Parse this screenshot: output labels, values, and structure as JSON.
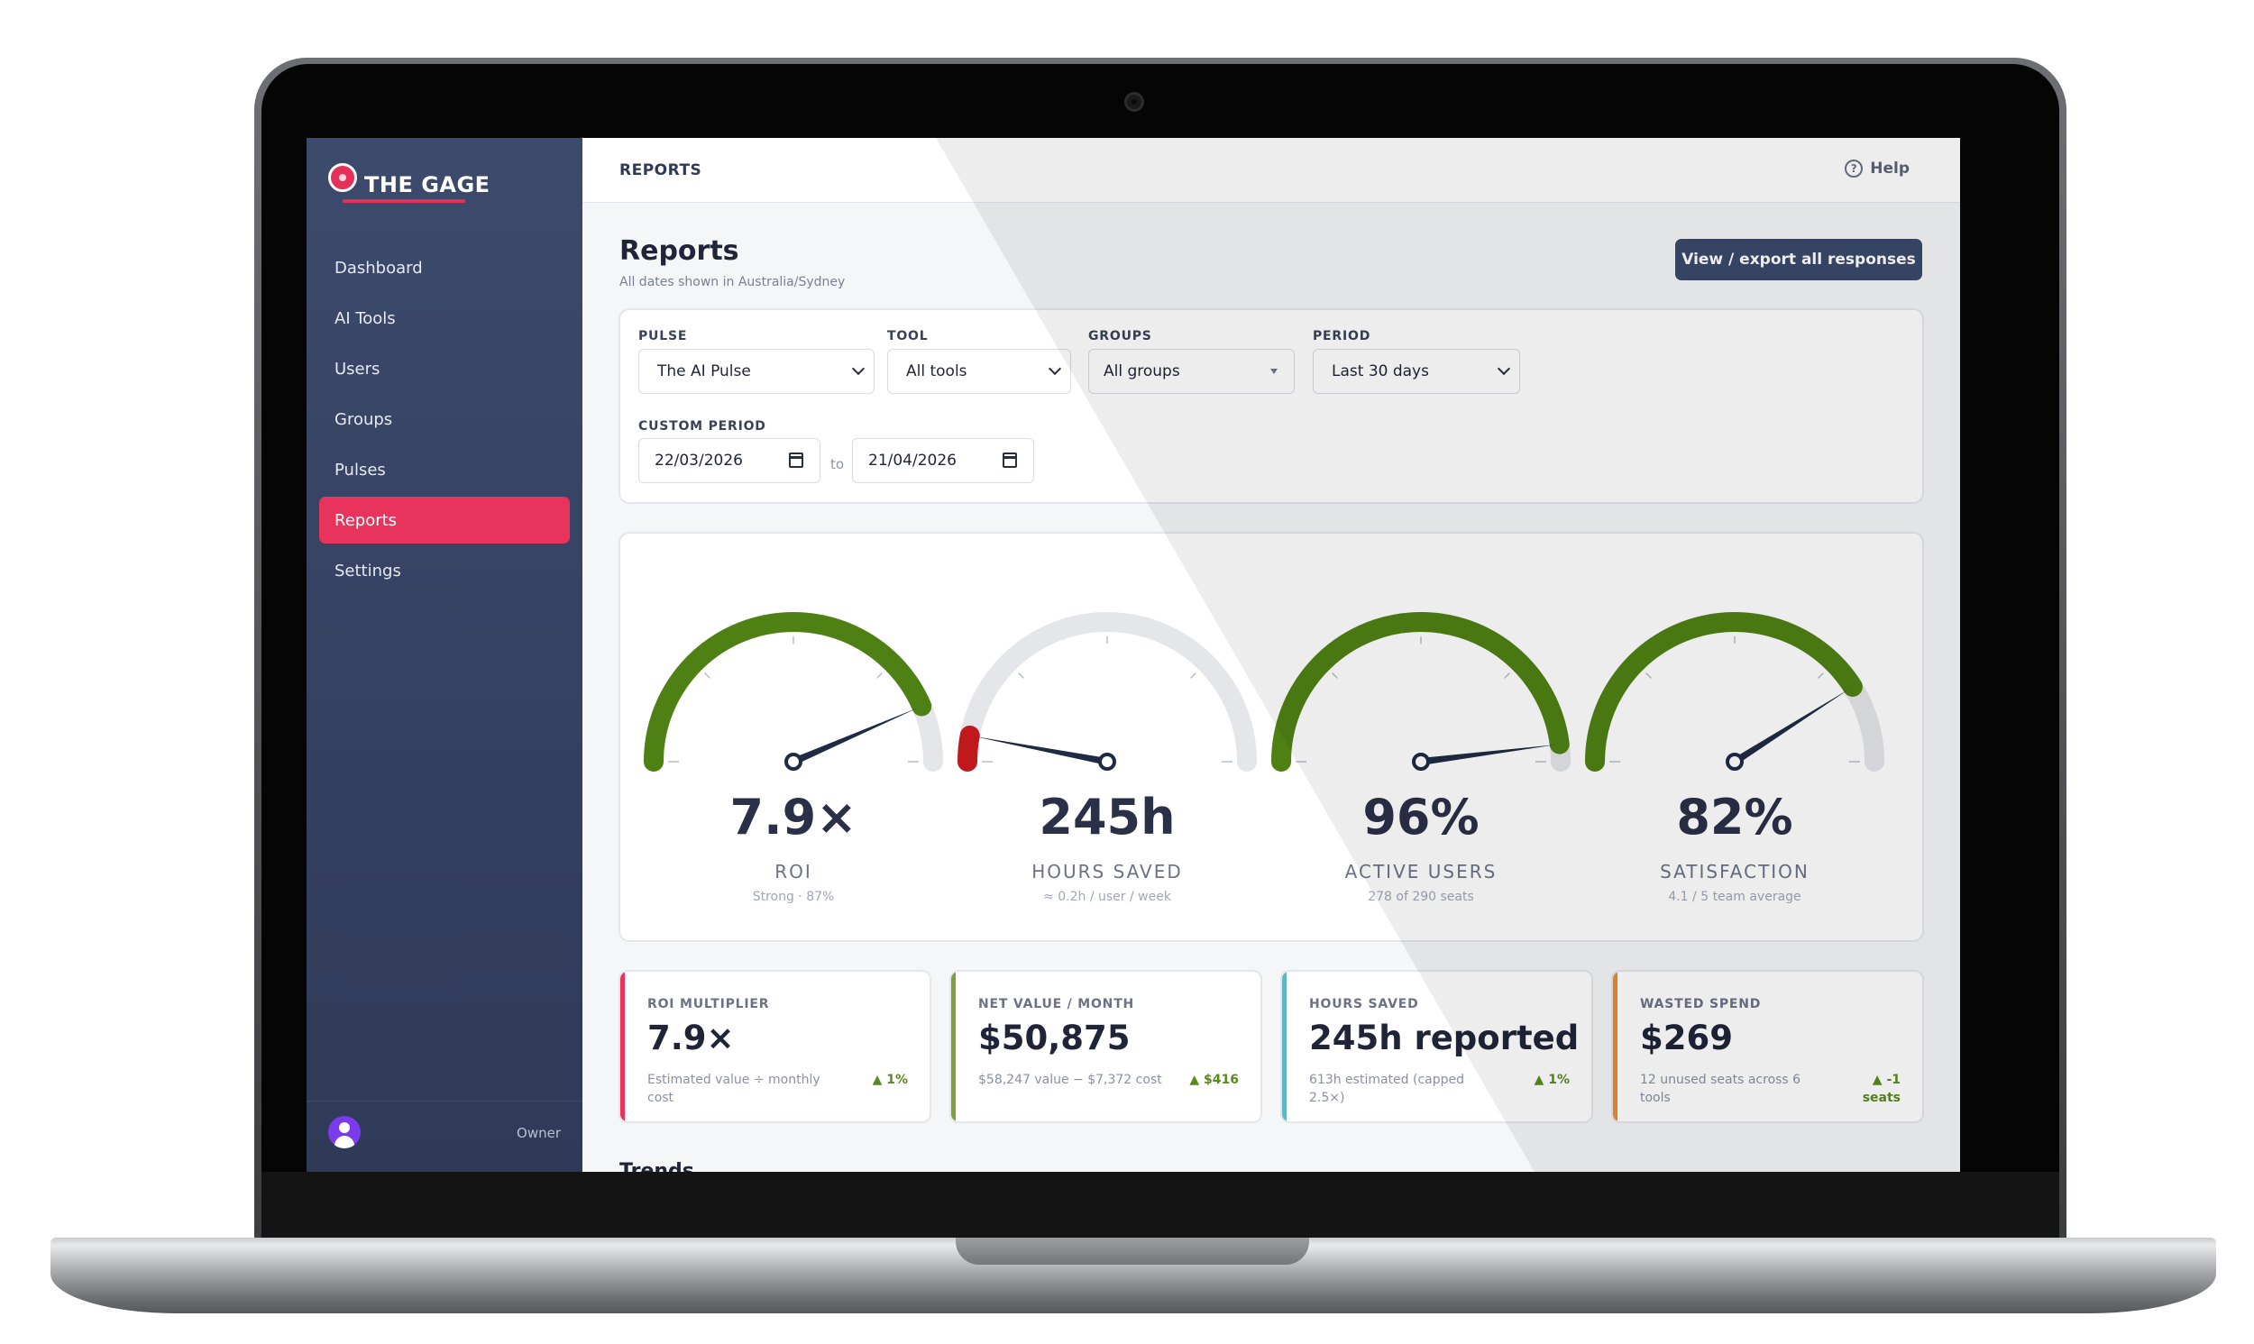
{
  "app": {
    "brand": "THE GAGE"
  },
  "sidebar": {
    "items": [
      {
        "label": "Dashboard",
        "active": false
      },
      {
        "label": "AI Tools",
        "active": false
      },
      {
        "label": "Users",
        "active": false
      },
      {
        "label": "Groups",
        "active": false
      },
      {
        "label": "Pulses",
        "active": false
      },
      {
        "label": "Reports",
        "active": true
      },
      {
        "label": "Settings",
        "active": false
      }
    ],
    "footer": {
      "role": "Owner"
    }
  },
  "topbar": {
    "title": "REPORTS",
    "help": "Help"
  },
  "page": {
    "title": "Reports",
    "subtitle": "All dates shown in Australia/Sydney",
    "export_button": "View / export all responses"
  },
  "filters": {
    "pulse": {
      "label": "PULSE",
      "value": "The AI Pulse"
    },
    "tool": {
      "label": "TOOL",
      "value": "All tools"
    },
    "groups": {
      "label": "GROUPS",
      "value": "All groups"
    },
    "period": {
      "label": "PERIOD",
      "value": "Last 30 days"
    },
    "custom_period": {
      "label": "CUSTOM PERIOD",
      "from": "22/03/2026",
      "to_label": "to",
      "to": "21/04/2026"
    }
  },
  "gauges": [
    {
      "value": "7.9×",
      "label": "ROI",
      "sub": "Strong · 87%",
      "level": 0.87,
      "color": "#4f8013"
    },
    {
      "value": "245h",
      "label": "HOURS SAVED",
      "sub": "≈ 0.2h / user / week",
      "level": 0.06,
      "color": "#c0191b"
    },
    {
      "value": "96%",
      "label": "ACTIVE USERS",
      "sub": "278 of 290 seats",
      "level": 0.96,
      "color": "#4f8013"
    },
    {
      "value": "82%",
      "label": "SATISFACTION",
      "sub": "4.1 / 5 team average",
      "level": 0.82,
      "color": "#4f8013"
    }
  ],
  "kpis": [
    {
      "label": "ROI MULTIPLIER",
      "value": "7.9×",
      "desc": "Estimated value ÷ monthly cost",
      "trend": "▲ 1%",
      "accent": "#e8345c"
    },
    {
      "label": "NET VALUE / MONTH",
      "value": "$50,875",
      "desc": "$58,247 value − $7,372 cost",
      "trend": "▲ $416",
      "accent": "#7da23a"
    },
    {
      "label": "HOURS SAVED",
      "value": "245h reported",
      "desc": "613h estimated (capped 2.5×)",
      "trend": "▲ 1%",
      "accent": "#5fb7c2"
    },
    {
      "label": "WASTED SPEND",
      "value": "$269",
      "desc": "12 unused seats across 6 tools",
      "trend": "▲ -1 seats",
      "accent": "#ef8a2e"
    }
  ],
  "trends": {
    "title": "Trends"
  },
  "colors": {
    "accent": "#e8345c",
    "sidebar": "#34415f",
    "good": "#4f8013",
    "bad": "#c0191b",
    "track": "#e5e6ea"
  }
}
